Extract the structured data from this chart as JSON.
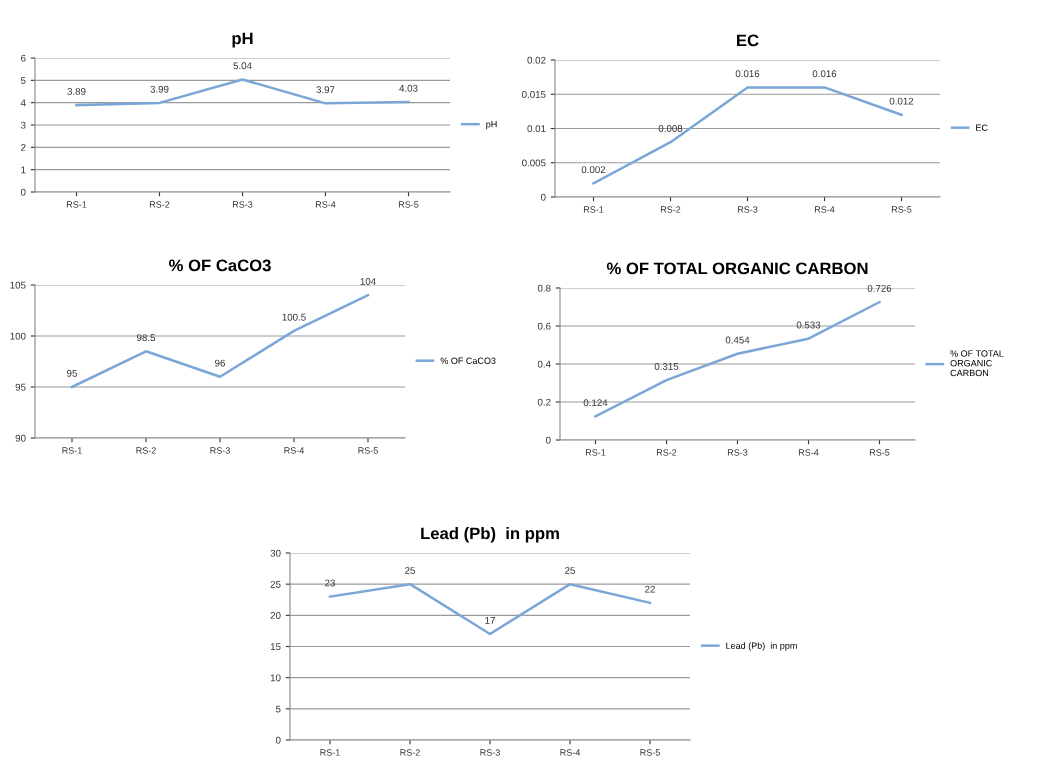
{
  "chart_data": [
    {
      "type": "line",
      "title": "pH",
      "categories": [
        "RS-1",
        "RS-2",
        "RS-3",
        "RS-4",
        "RS-5"
      ],
      "series": [
        {
          "name": "pH",
          "color": "#7aa6d8",
          "values": [
            3.89,
            3.99,
            5.04,
            3.97,
            4.03
          ]
        }
      ],
      "ylim": [
        0,
        6
      ],
      "yticks": [
        0,
        1,
        2,
        3,
        4,
        5,
        6
      ],
      "grid": "y",
      "legend": "right",
      "data_labels": true
    },
    {
      "type": "line",
      "title": "EC",
      "categories": [
        "RS-1",
        "RS-2",
        "RS-3",
        "RS-4",
        "RS-5"
      ],
      "series": [
        {
          "name": "EC",
          "color": "#7aa6d8",
          "values": [
            0.002,
            0.008,
            0.016,
            0.016,
            0.012
          ]
        }
      ],
      "ylim": [
        0,
        0.02
      ],
      "yticks": [
        0,
        0.005,
        0.01,
        0.015,
        0.02
      ],
      "grid": "y",
      "legend": "right",
      "data_labels": true
    },
    {
      "type": "line",
      "title": "% OF CaCO3",
      "categories": [
        "RS-1",
        "RS-2",
        "RS-3",
        "RS-4",
        "RS-5"
      ],
      "series": [
        {
          "name": "% OF CaCO3",
          "color": "#7aa6d8",
          "values": [
            95,
            98.5,
            96,
            100.5,
            104
          ]
        }
      ],
      "ylim": [
        90,
        105
      ],
      "yticks": [
        90,
        95,
        100,
        105
      ],
      "grid": "y",
      "legend": "right",
      "data_labels": true
    },
    {
      "type": "line",
      "title": "% OF TOTAL ORGANIC CARBON",
      "categories": [
        "RS-1",
        "RS-2",
        "RS-3",
        "RS-4",
        "RS-5"
      ],
      "series": [
        {
          "name": "% OF TOTAL ORGANIC CARBON",
          "color": "#7aa6d8",
          "values": [
            0.124,
            0.315,
            0.454,
            0.533,
            0.726
          ]
        }
      ],
      "ylim": [
        0,
        0.8
      ],
      "yticks": [
        0,
        0.2,
        0.4,
        0.6,
        0.8
      ],
      "grid": "y",
      "legend": "right",
      "data_labels": true
    },
    {
      "type": "line",
      "title": "Lead (Pb)  in ppm",
      "categories": [
        "RS-1",
        "RS-2",
        "RS-3",
        "RS-4",
        "RS-5"
      ],
      "series": [
        {
          "name": "Lead (Pb)  in ppm",
          "color": "#7aa6d8",
          "values": [
            23,
            25,
            17,
            25,
            22
          ]
        }
      ],
      "ylim": [
        0,
        30
      ],
      "yticks": [
        0,
        5,
        10,
        15,
        20,
        25,
        30
      ],
      "grid": "y",
      "legend": "right",
      "data_labels": true
    }
  ]
}
